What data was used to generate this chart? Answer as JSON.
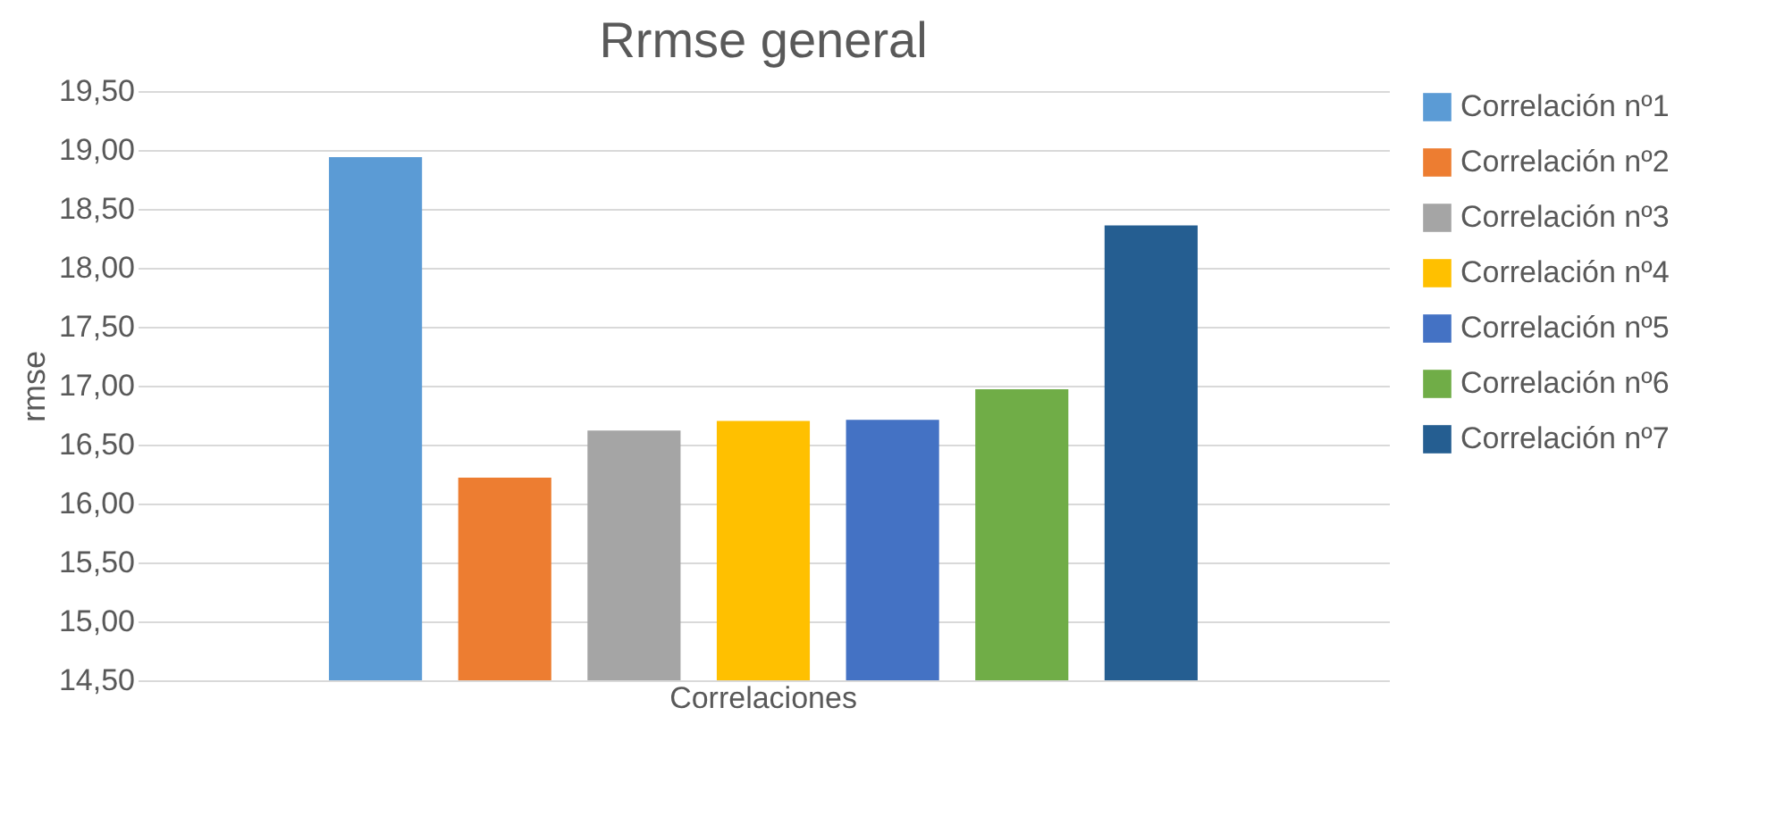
{
  "chart_data": {
    "type": "bar",
    "title": "Rrmse general",
    "ylabel": "rmse",
    "categories": [
      "Correlaciones"
    ],
    "series": [
      {
        "name": "Correlación nº1",
        "color": "#5b9bd5",
        "values": [
          18.94
        ]
      },
      {
        "name": "Correlación nº2",
        "color": "#ed7d31",
        "values": [
          16.22
        ]
      },
      {
        "name": "Correlación nº3",
        "color": "#a5a5a5",
        "values": [
          16.62
        ]
      },
      {
        "name": "Correlación nº4",
        "color": "#ffc000",
        "values": [
          16.7
        ]
      },
      {
        "name": "Correlación nº5",
        "color": "#4472c4",
        "values": [
          16.71
        ]
      },
      {
        "name": "Correlación nº6",
        "color": "#70ad47",
        "values": [
          16.97
        ]
      },
      {
        "name": "Correlación nº7",
        "color": "#255e91",
        "values": [
          18.36
        ]
      }
    ],
    "ylim": [
      14.5,
      19.5
    ],
    "yticks": [
      {
        "value": 14.5,
        "label": "14,50"
      },
      {
        "value": 15,
        "label": "15,00"
      },
      {
        "value": 15.5,
        "label": "15,50"
      },
      {
        "value": 16,
        "label": "16,00"
      },
      {
        "value": 16.5,
        "label": "16,50"
      },
      {
        "value": 17,
        "label": "17,00"
      },
      {
        "value": 17.5,
        "label": "17,50"
      },
      {
        "value": 18,
        "label": "18,00"
      },
      {
        "value": 18.5,
        "label": "18,50"
      },
      {
        "value": 19,
        "label": "19,00"
      },
      {
        "value": 19.5,
        "label": "19,50"
      }
    ],
    "grid": "y",
    "legend": "right"
  }
}
